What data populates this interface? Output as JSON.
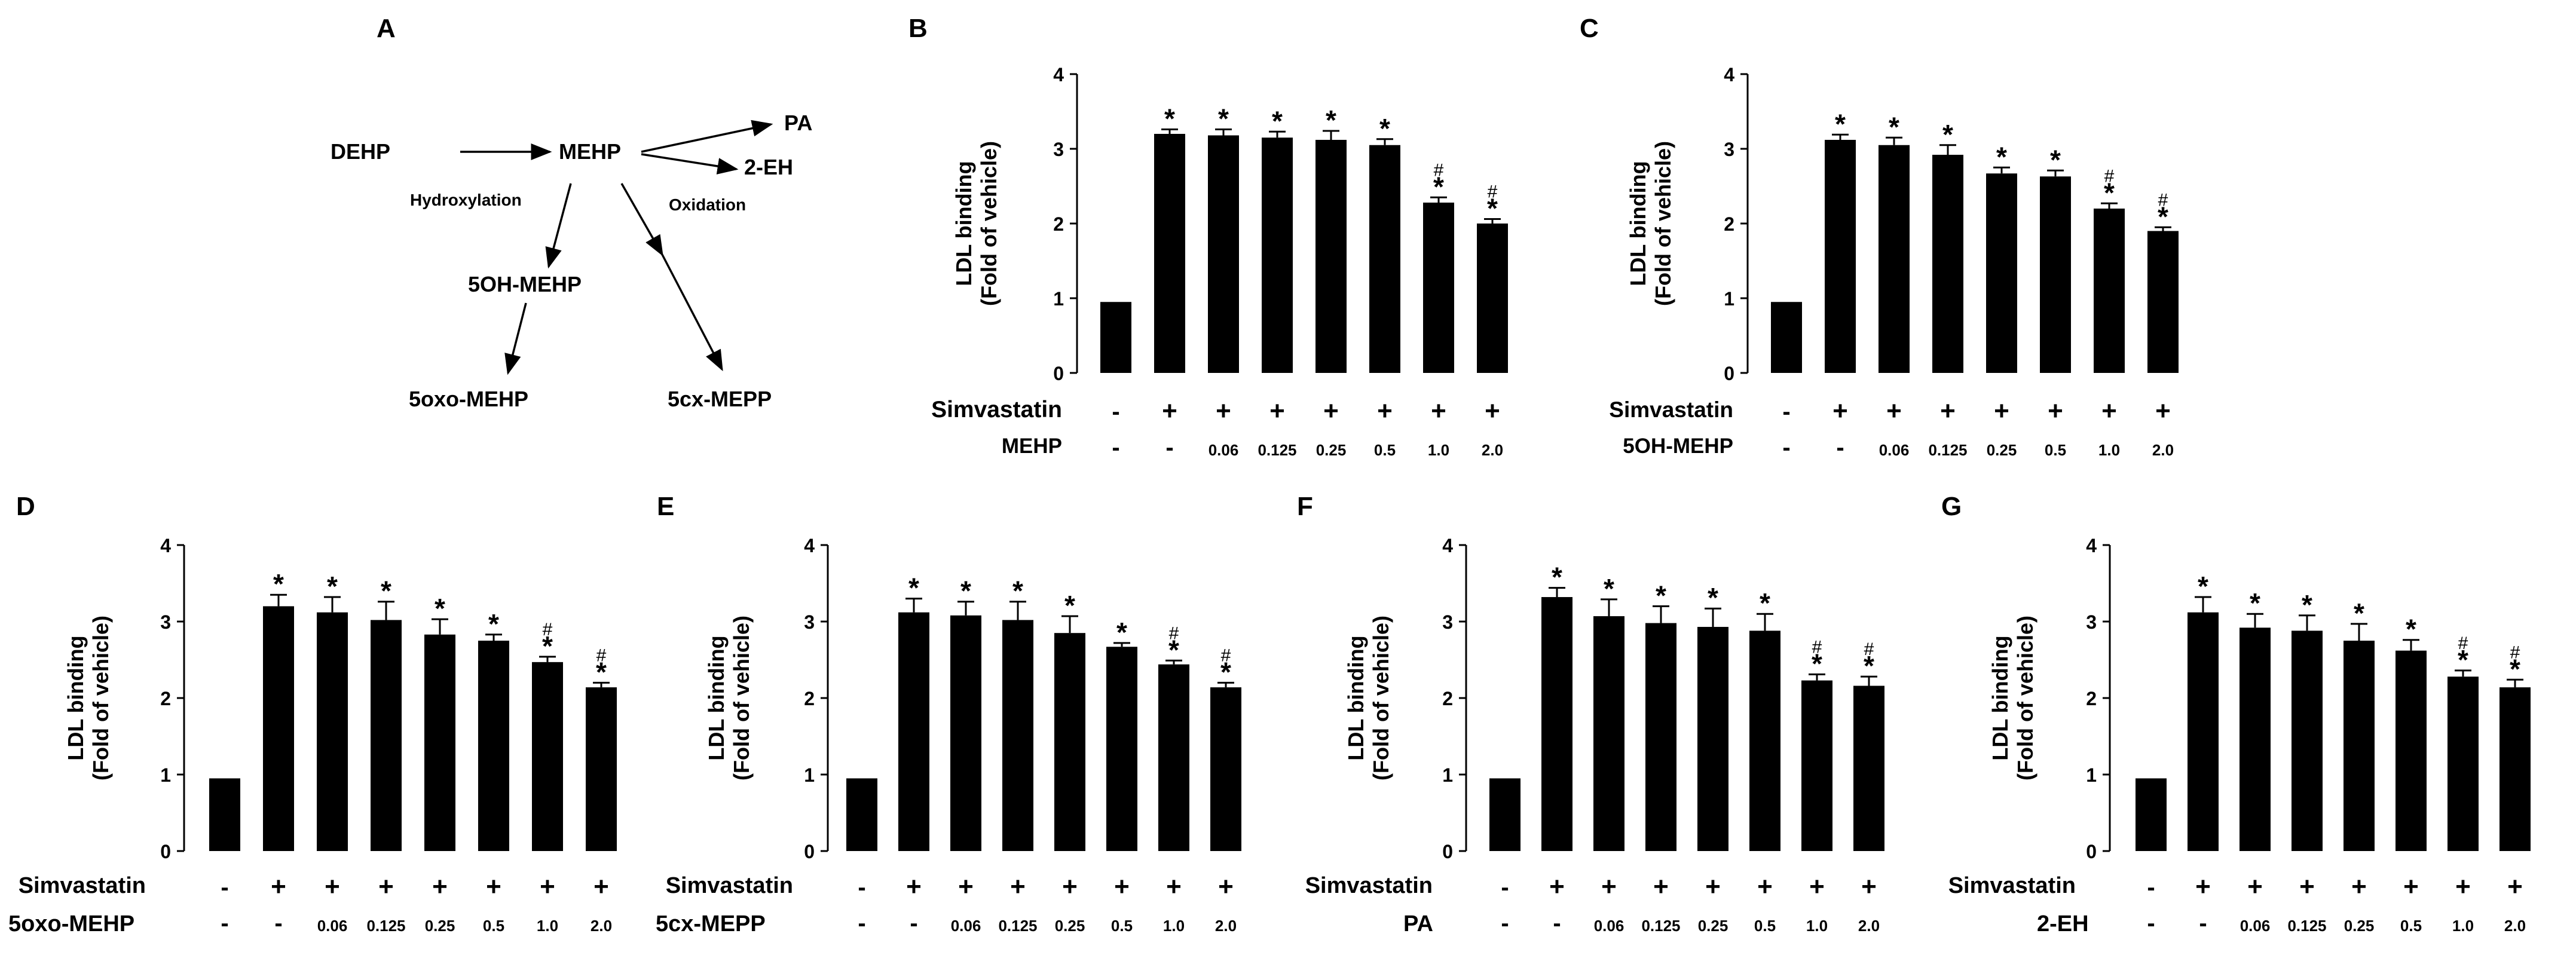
{
  "figure": {
    "panel_a": {
      "letter": "A",
      "nodes": {
        "dehp": "DEHP",
        "mehp": "MEHP",
        "pa": "PA",
        "eh": "2-EH",
        "ohmehp": "5OH-MEHP",
        "oxomehp": "5oxo-MEHP",
        "cxmepp": "5cx-MEPP"
      },
      "labels": {
        "hydroxylation": "Hydroxylation",
        "oxidation": "Oxidation"
      }
    }
  },
  "chart_data": [
    {
      "panel": "B",
      "type": "bar",
      "ylabel_line1": "LDL binding",
      "ylabel_line2": "(Fold of vehicle)",
      "ylim": [
        0,
        4
      ],
      "yticks": [
        "0",
        "1",
        "2",
        "3",
        "4"
      ],
      "row1_label": "Simvastatin",
      "row1": [
        "-",
        "+",
        "+",
        "+",
        "+",
        "+",
        "+",
        "+"
      ],
      "row2_label": "MEHP",
      "row2": [
        "-",
        "-",
        "0.06",
        "0.125",
        "0.25",
        "0.5",
        "1.0",
        "2.0"
      ],
      "values": [
        0.95,
        3.2,
        3.18,
        3.15,
        3.12,
        3.05,
        2.28,
        2.0
      ],
      "errors": [
        0,
        0.06,
        0.08,
        0.08,
        0.12,
        0.08,
        0.07,
        0.06
      ],
      "star": [
        "",
        "*",
        "*",
        "*",
        "*",
        "*",
        "*",
        "*"
      ],
      "hash": [
        "",
        "",
        "",
        "",
        "",
        "",
        "#",
        "#"
      ]
    },
    {
      "panel": "C",
      "type": "bar",
      "ylabel_line1": "LDL binding",
      "ylabel_line2": "(Fold of vehicle)",
      "ylim": [
        0,
        4
      ],
      "yticks": [
        "0",
        "1",
        "2",
        "3",
        "4"
      ],
      "row1_label": "Simvastatin",
      "row1": [
        "-",
        "+",
        "+",
        "+",
        "+",
        "+",
        "+",
        "+"
      ],
      "row2_label": "5OH-MEHP",
      "row2": [
        "-",
        "-",
        "0.06",
        "0.125",
        "0.25",
        "0.5",
        "1.0",
        "2.0"
      ],
      "values": [
        0.95,
        3.12,
        3.05,
        2.92,
        2.67,
        2.63,
        2.2,
        1.9
      ],
      "errors": [
        0,
        0.07,
        0.1,
        0.13,
        0.08,
        0.08,
        0.07,
        0.05
      ],
      "star": [
        "",
        "*",
        "*",
        "*",
        "*",
        "*",
        "*",
        "*"
      ],
      "hash": [
        "",
        "",
        "",
        "",
        "",
        "",
        "#",
        "#"
      ]
    },
    {
      "panel": "D",
      "type": "bar",
      "ylabel_line1": "LDL binding",
      "ylabel_line2": "(Fold of vehicle)",
      "ylim": [
        0,
        4
      ],
      "yticks": [
        "0",
        "1",
        "2",
        "3",
        "4"
      ],
      "row1_label": "Simvastatin",
      "row1": [
        "-",
        "+",
        "+",
        "+",
        "+",
        "+",
        "+",
        "+"
      ],
      "row2_label": "5oxo-MEHP",
      "row2": [
        "-",
        "-",
        "0.06",
        "0.125",
        "0.25",
        "0.5",
        "1.0",
        "2.0"
      ],
      "values": [
        0.95,
        3.2,
        3.12,
        3.02,
        2.83,
        2.75,
        2.47,
        2.14
      ],
      "errors": [
        0,
        0.15,
        0.2,
        0.24,
        0.2,
        0.08,
        0.07,
        0.06
      ],
      "star": [
        "",
        "*",
        "*",
        "*",
        "*",
        "*",
        "*",
        "*"
      ],
      "hash": [
        "",
        "",
        "",
        "",
        "",
        "",
        "#",
        "#"
      ]
    },
    {
      "panel": "E",
      "type": "bar",
      "ylabel_line1": "LDL binding",
      "ylabel_line2": "(Fold of vehicle)",
      "ylim": [
        0,
        4
      ],
      "yticks": [
        "0",
        "1",
        "2",
        "3",
        "4"
      ],
      "row1_label": "Simvastatin",
      "row1": [
        "-",
        "+",
        "+",
        "+",
        "+",
        "+",
        "+",
        "+"
      ],
      "row2_label": "5cx-MEPP",
      "row2": [
        "-",
        "-",
        "0.06",
        "0.125",
        "0.25",
        "0.5",
        "1.0",
        "2.0"
      ],
      "values": [
        0.95,
        3.12,
        3.08,
        3.02,
        2.85,
        2.67,
        2.44,
        2.14
      ],
      "errors": [
        0,
        0.18,
        0.18,
        0.24,
        0.22,
        0.05,
        0.05,
        0.06
      ],
      "star": [
        "",
        "*",
        "*",
        "*",
        "*",
        "*",
        "*",
        "*"
      ],
      "hash": [
        "",
        "",
        "",
        "",
        "",
        "",
        "#",
        "#"
      ]
    },
    {
      "panel": "F",
      "type": "bar",
      "ylabel_line1": "LDL binding",
      "ylabel_line2": "(Fold of vehicle)",
      "ylim": [
        0,
        4
      ],
      "yticks": [
        "0",
        "1",
        "2",
        "3",
        "4"
      ],
      "row1_label": "Simvastatin",
      "row1": [
        "-",
        "+",
        "+",
        "+",
        "+",
        "+",
        "+",
        "+"
      ],
      "row2_label": "PA",
      "row2": [
        "-",
        "-",
        "0.06",
        "0.125",
        "0.25",
        "0.5",
        "1.0",
        "2.0"
      ],
      "values": [
        0.95,
        3.32,
        3.07,
        2.98,
        2.93,
        2.88,
        2.23,
        2.16
      ],
      "errors": [
        0,
        0.12,
        0.22,
        0.22,
        0.24,
        0.22,
        0.08,
        0.12
      ],
      "star": [
        "",
        "*",
        "*",
        "*",
        "*",
        "*",
        "*",
        "*"
      ],
      "hash": [
        "",
        "",
        "",
        "",
        "",
        "",
        "#",
        "#"
      ]
    },
    {
      "panel": "G",
      "type": "bar",
      "ylabel_line1": "LDL binding",
      "ylabel_line2": "(Fold of vehicle)",
      "ylim": [
        0,
        4
      ],
      "yticks": [
        "0",
        "1",
        "2",
        "3",
        "4"
      ],
      "row1_label": "Simvastatin",
      "row1": [
        "-",
        "+",
        "+",
        "+",
        "+",
        "+",
        "+",
        "+"
      ],
      "row2_label": "2-EH",
      "row2": [
        "-",
        "-",
        "0.06",
        "0.125",
        "0.25",
        "0.5",
        "1.0",
        "2.0"
      ],
      "values": [
        0.95,
        3.12,
        2.92,
        2.88,
        2.75,
        2.62,
        2.28,
        2.14
      ],
      "errors": [
        0,
        0.2,
        0.18,
        0.2,
        0.22,
        0.14,
        0.08,
        0.1
      ],
      "star": [
        "",
        "*",
        "*",
        "*",
        "*",
        "*",
        "*",
        "*"
      ],
      "hash": [
        "",
        "",
        "",
        "",
        "",
        "",
        "#",
        "#"
      ]
    }
  ]
}
